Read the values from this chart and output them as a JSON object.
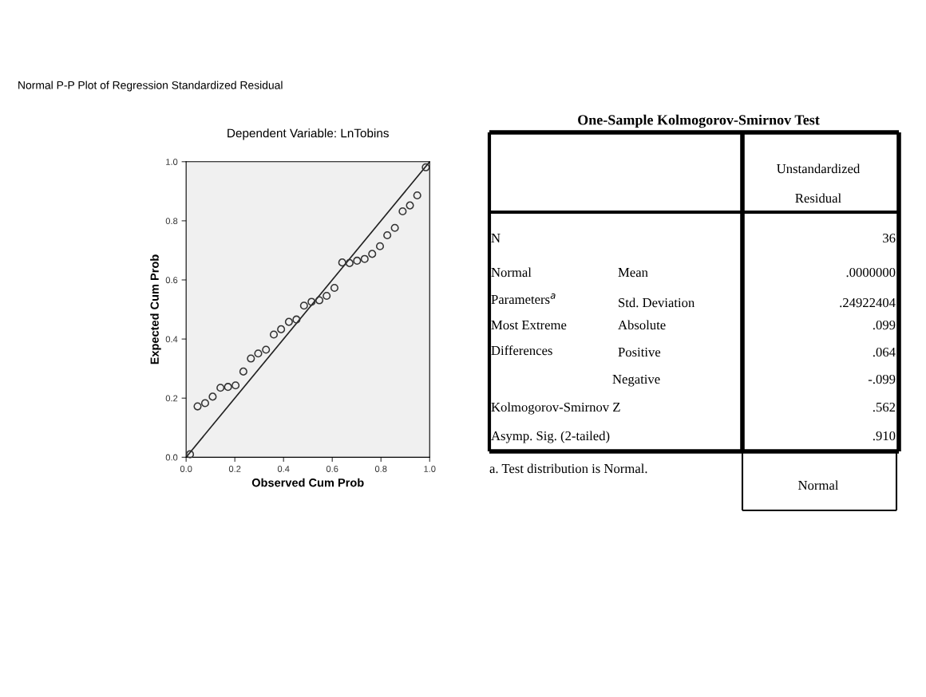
{
  "chart_data": [
    {
      "type": "scatter",
      "title": "Normal P-P Plot of Regression Standardized Residual",
      "subtitle": "Dependent Variable: LnTobins",
      "xlabel": "Observed Cum Prob",
      "ylabel": "Expected Cum Prob",
      "xlim": [
        0,
        1
      ],
      "ylim": [
        0,
        1
      ],
      "xticks": [
        {
          "value": 0,
          "label": "0.0"
        },
        {
          "value": 0.2,
          "label": "0.2"
        },
        {
          "value": 0.4,
          "label": "0.4"
        },
        {
          "value": 0.6,
          "label": "0.6"
        },
        {
          "value": 0.8,
          "label": "0.8"
        },
        {
          "value": 1,
          "label": "1.0"
        }
      ],
      "yticks": [
        {
          "value": 0,
          "label": "0.0"
        },
        {
          "value": 0.2,
          "label": "0.2"
        },
        {
          "value": 0.4,
          "label": "0.4"
        },
        {
          "value": 0.6,
          "label": "0.6"
        },
        {
          "value": 0.8,
          "label": "0.8"
        },
        {
          "value": 1,
          "label": "1.0"
        }
      ],
      "grid": false,
      "legend": false,
      "series": [
        {
          "type": "scatter",
          "marker": "circle",
          "color": "#333333",
          "x": [
            0.016,
            0.047,
            0.078,
            0.109,
            0.141,
            0.172,
            0.203,
            0.235,
            0.266,
            0.296,
            0.328,
            0.36,
            0.39,
            0.422,
            0.453,
            0.484,
            0.515,
            0.547,
            0.577,
            0.609,
            0.641,
            0.671,
            0.702,
            0.733,
            0.764,
            0.796,
            0.826,
            0.857,
            0.889,
            0.919,
            0.949,
            0.984
          ],
          "values": [
            0.01,
            0.172,
            0.183,
            0.205,
            0.235,
            0.238,
            0.243,
            0.29,
            0.334,
            0.351,
            0.364,
            0.415,
            0.433,
            0.458,
            0.466,
            0.513,
            0.526,
            0.531,
            0.546,
            0.573,
            0.659,
            0.657,
            0.665,
            0.671,
            0.688,
            0.714,
            0.751,
            0.776,
            0.832,
            0.852,
            0.886,
            0.981
          ]
        },
        {
          "type": "line",
          "color": "#222222",
          "x": [
            0,
            1
          ],
          "values": [
            0,
            1
          ]
        }
      ]
    },
    {
      "type": "other",
      "title": "One-Sample Kolmogorov-Smirnov Test",
      "annotations": [
        "Unstandardized",
        "Residual",
        "N",
        "36",
        "Normal",
        "Parameters$^{a}$",
        "Mean",
        ".0000000",
        "Std. Deviation",
        ".24922404",
        "Most Extreme",
        "Differences",
        "Absolute",
        ".099",
        "Positive",
        ".064",
        "Negative",
        "-.099",
        "Kolmogorov-Smirnov Z",
        ".562",
        "Asymp. Sig. (2-tailed)",
        ".910",
        "a. Test distribution is Normal.",
        "Normal"
      ]
    }
  ]
}
